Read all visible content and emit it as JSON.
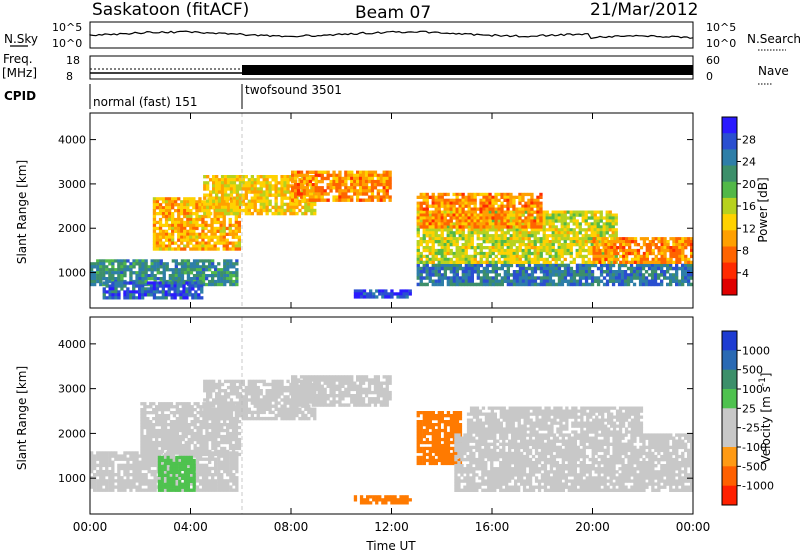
{
  "header": {
    "station": "Saskatoon (fitACF)",
    "beam": "Beam 07",
    "date": "21/Mar/2012"
  },
  "top_panels": {
    "nsky_label": "N.Sky",
    "nsky_ticks": [
      "10^5",
      "10^0"
    ],
    "nsearch_label": "N.Search",
    "nsearch_ticks": [
      "10^5",
      "10^0"
    ],
    "freq_label": "Freq.",
    "freq_unit": "[MHz]",
    "freq_ticks": [
      "18",
      "8"
    ],
    "nave_label": "Nave",
    "nave_ticks": [
      "60",
      "0"
    ],
    "cpid_label": "CPID",
    "cpid_modes": [
      {
        "name": "normal (fast) 151",
        "start_hour": 0,
        "end_hour": 6
      },
      {
        "name": "twofsound 3501",
        "start_hour": 6,
        "end_hour": 24
      }
    ]
  },
  "chart_data": [
    {
      "type": "heatmap",
      "id": "power",
      "ylabel": "Slant Range [km]",
      "xlabel": "Time UT",
      "xlim": [
        0,
        24
      ],
      "ylim": [
        200,
        4600
      ],
      "yticks": [
        1000,
        2000,
        3000,
        4000
      ],
      "xtick_labels": [
        "00:00",
        "04:00",
        "08:00",
        "12:00",
        "16:00",
        "20:00",
        "00:00"
      ],
      "colorbar": {
        "label": "Power [dB]",
        "ticks": [
          "28",
          "24",
          "20",
          "16",
          "12",
          "8",
          "4"
        ],
        "colors": [
          "#2a1aff",
          "#2a4fd0",
          "#2e7ea8",
          "#3c8f6a",
          "#52b848",
          "#b7d21e",
          "#ffd200",
          "#ffa000",
          "#ff6400",
          "#ff2a00",
          "#e00000"
        ]
      },
      "regions": [
        {
          "t0": 0.0,
          "t1": 5.9,
          "r0": 700,
          "r1": 1300,
          "value": 22
        },
        {
          "t0": 0.5,
          "t1": 4.5,
          "r0": 400,
          "r1": 800,
          "value": 26
        },
        {
          "t0": 2.5,
          "t1": 6.0,
          "r0": 1500,
          "r1": 2700,
          "value": 10
        },
        {
          "t0": 4.5,
          "t1": 9.0,
          "r0": 2300,
          "r1": 3200,
          "value": 12
        },
        {
          "t0": 8.0,
          "t1": 12.0,
          "r0": 2600,
          "r1": 3300,
          "value": 8
        },
        {
          "t0": 10.5,
          "t1": 12.8,
          "r0": 420,
          "r1": 620,
          "value": 28
        },
        {
          "t0": 13.0,
          "t1": 24.0,
          "r0": 700,
          "r1": 1200,
          "value": 24
        },
        {
          "t0": 13.0,
          "t1": 21.0,
          "r0": 1200,
          "r1": 2400,
          "value": 14
        },
        {
          "t0": 13.0,
          "t1": 18.0,
          "r0": 2000,
          "r1": 2800,
          "value": 8
        },
        {
          "t0": 20.0,
          "t1": 24.0,
          "r0": 1200,
          "r1": 1800,
          "value": 8
        }
      ]
    },
    {
      "type": "heatmap",
      "id": "velocity",
      "ylabel": "Slant Range [km]",
      "xlabel": "Time UT",
      "xlim": [
        0,
        24
      ],
      "ylim": [
        200,
        4600
      ],
      "yticks": [
        1000,
        2000,
        3000,
        4000
      ],
      "xtick_labels": [
        "00:00",
        "04:00",
        "08:00",
        "12:00",
        "16:00",
        "20:00",
        "00:00"
      ],
      "colorbar": {
        "label": "Velocity [m s^-1]",
        "ticks": [
          "1000",
          "500",
          "100",
          "25",
          "-25",
          "-100",
          "-500",
          "-1000"
        ],
        "colors": [
          "#1e3cd2",
          "#2a6ab4",
          "#3c8f6a",
          "#4fc24f",
          "#c8c8c8",
          "#c8c8c8",
          "#ff9a14",
          "#ff6000",
          "#ff2000"
        ]
      },
      "regions": [
        {
          "t0": 0.0,
          "t1": 5.9,
          "r0": 700,
          "r1": 1600,
          "value": 0
        },
        {
          "t0": 2.0,
          "t1": 6.0,
          "r0": 1500,
          "r1": 2700,
          "value": 0
        },
        {
          "t0": 4.5,
          "t1": 9.0,
          "r0": 2300,
          "r1": 3200,
          "value": 0
        },
        {
          "t0": 8.0,
          "t1": 12.0,
          "r0": 2600,
          "r1": 3300,
          "value": 0
        },
        {
          "t0": 2.7,
          "t1": 4.2,
          "r0": 700,
          "r1": 1500,
          "value": 100
        },
        {
          "t0": 10.5,
          "t1": 12.8,
          "r0": 420,
          "r1": 620,
          "value": -300
        },
        {
          "t0": 13.0,
          "t1": 14.8,
          "r0": 1300,
          "r1": 2500,
          "value": -400
        },
        {
          "t0": 14.5,
          "t1": 24.0,
          "r0": 700,
          "r1": 2000,
          "value": 0
        },
        {
          "t0": 15.0,
          "t1": 22.0,
          "r0": 2000,
          "r1": 2600,
          "value": 0
        }
      ]
    }
  ],
  "time_axis_label": "Time UT"
}
